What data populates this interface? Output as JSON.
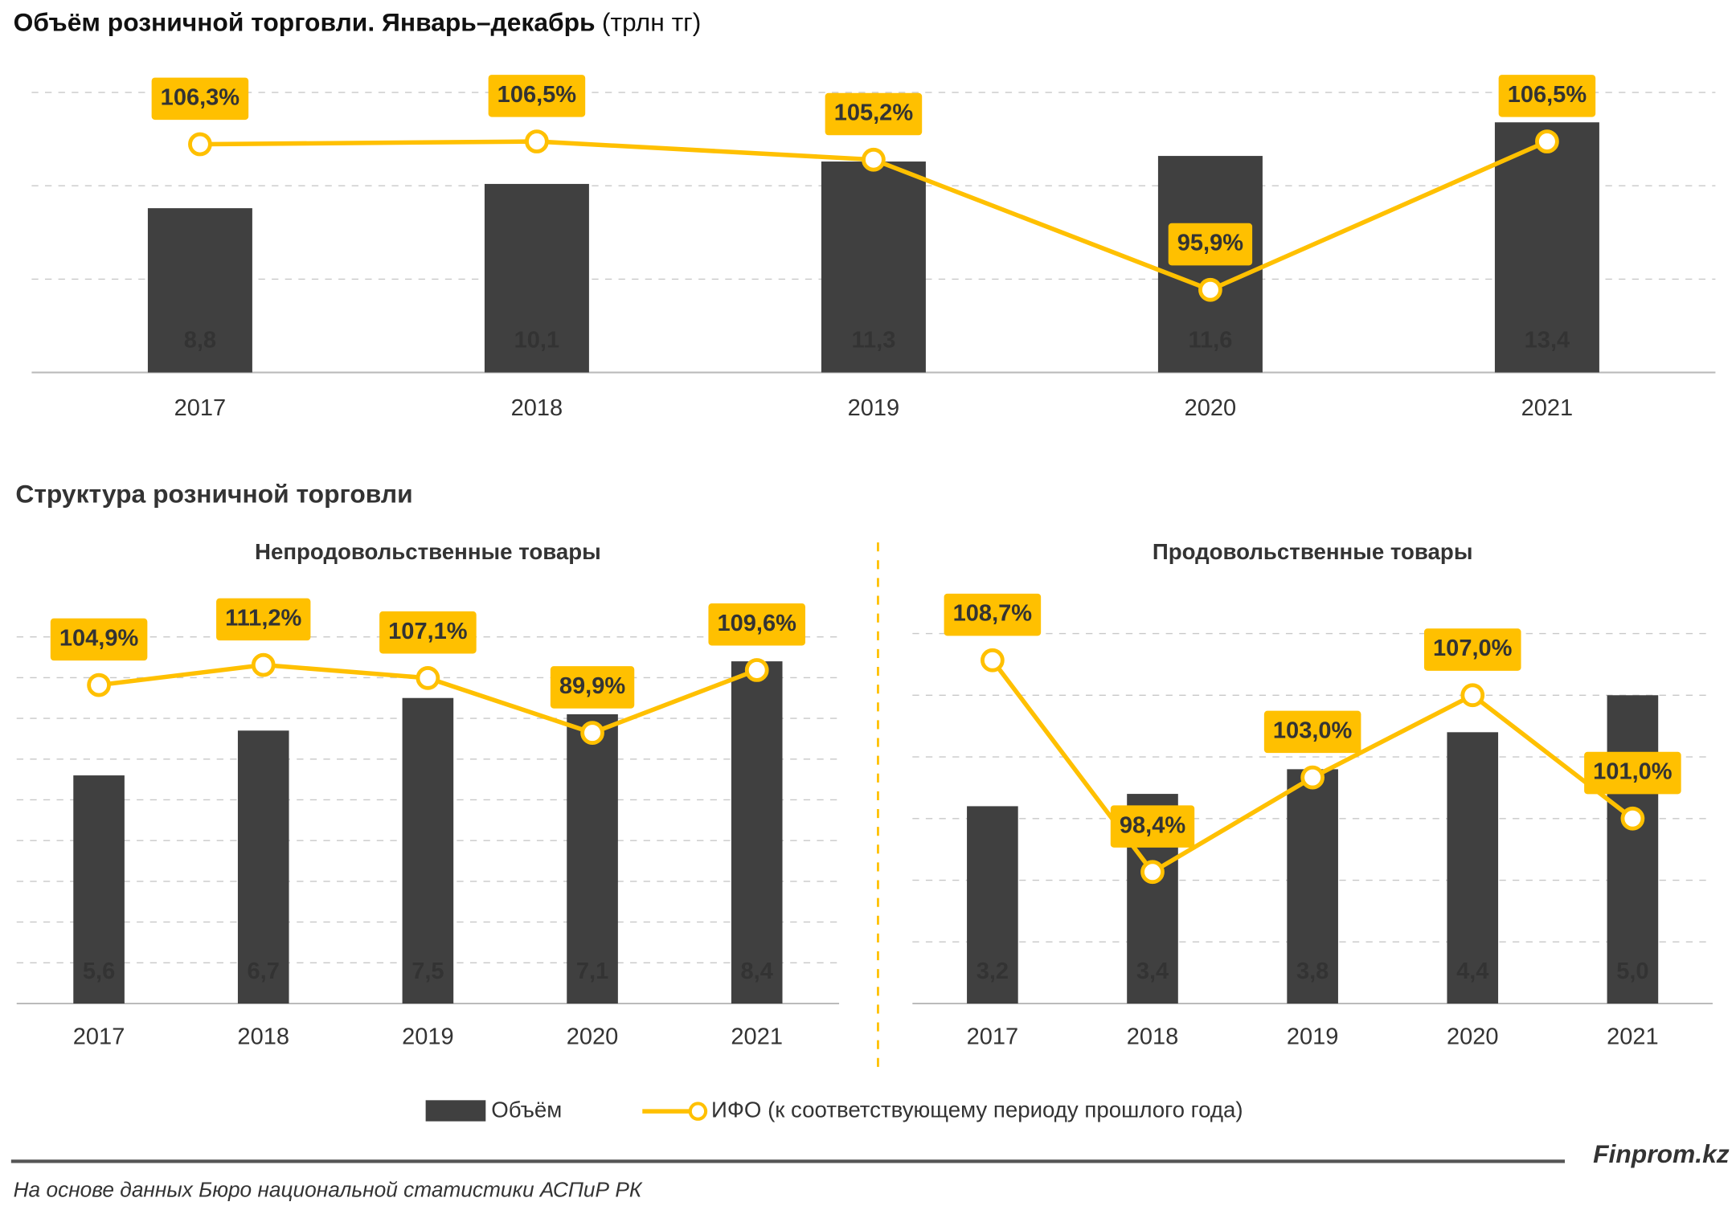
{
  "chart_data": [
    {
      "type": "combo",
      "title": "Объём розничной торговли. Январь–декабрь",
      "unit": "(трлн тг)",
      "categories": [
        "2017",
        "2018",
        "2019",
        "2020",
        "2021"
      ],
      "ylim": [
        0,
        15
      ],
      "y2lim": [
        90,
        110
      ],
      "series": [
        {
          "name": "Объём",
          "type": "bar",
          "color": "#404040",
          "values": [
            8.8,
            10.1,
            11.3,
            11.6,
            13.4
          ],
          "value_labels": [
            "8,8",
            "10,1",
            "11,3",
            "11,6",
            "13,4"
          ]
        },
        {
          "name": "ИФО (к соответствующему периоду прошлого года)",
          "type": "line",
          "axis": "y2",
          "color": "#FFC000",
          "values": [
            106.3,
            106.5,
            105.2,
            95.9,
            106.5
          ],
          "value_labels": [
            "106,3%",
            "106,5%",
            "105,2%",
            "95,9%",
            "106,5%"
          ]
        }
      ]
    },
    {
      "type": "combo",
      "title": "Непродовольственные товары",
      "categories": [
        "2017",
        "2018",
        "2019",
        "2020",
        "2021"
      ],
      "ylim": [
        0,
        9
      ],
      "y2lim": [
        5,
        120
      ],
      "series": [
        {
          "type": "bar",
          "color": "#404040",
          "values": [
            5.6,
            6.7,
            7.5,
            7.1,
            8.4
          ],
          "value_labels": [
            "5,6",
            "6,7",
            "7,5",
            "7,1",
            "8,4"
          ]
        },
        {
          "type": "line",
          "axis": "y2",
          "color": "#FFC000",
          "values": [
            104.9,
            111.2,
            107.1,
            89.9,
            109.6
          ],
          "value_labels": [
            "104,9%",
            "111,2%",
            "107,1%",
            "89,9%",
            "109,6%"
          ]
        }
      ]
    },
    {
      "type": "combo",
      "title": "Продовольственные товары",
      "categories": [
        "2017",
        "2018",
        "2019",
        "2020",
        "2021"
      ],
      "ylim": [
        0,
        6
      ],
      "y2lim": [
        92,
        110
      ],
      "series": [
        {
          "type": "bar",
          "color": "#404040",
          "values": [
            3.2,
            3.4,
            3.8,
            4.4,
            5.0
          ],
          "value_labels": [
            "3,2",
            "3,4",
            "3,8",
            "4,4",
            "5,0"
          ]
        },
        {
          "type": "line",
          "axis": "y2",
          "color": "#FFC000",
          "values": [
            108.7,
            98.4,
            103.0,
            107.0,
            101.0
          ],
          "value_labels": [
            "108,7%",
            "98,4%",
            "103,0%",
            "107,0%",
            "101,0%"
          ]
        }
      ]
    }
  ],
  "section_title": "Структура розничной торговли",
  "source": "На основе данных Бюро национальной статистики АСПиР РК",
  "brand": "Finprom.kz"
}
